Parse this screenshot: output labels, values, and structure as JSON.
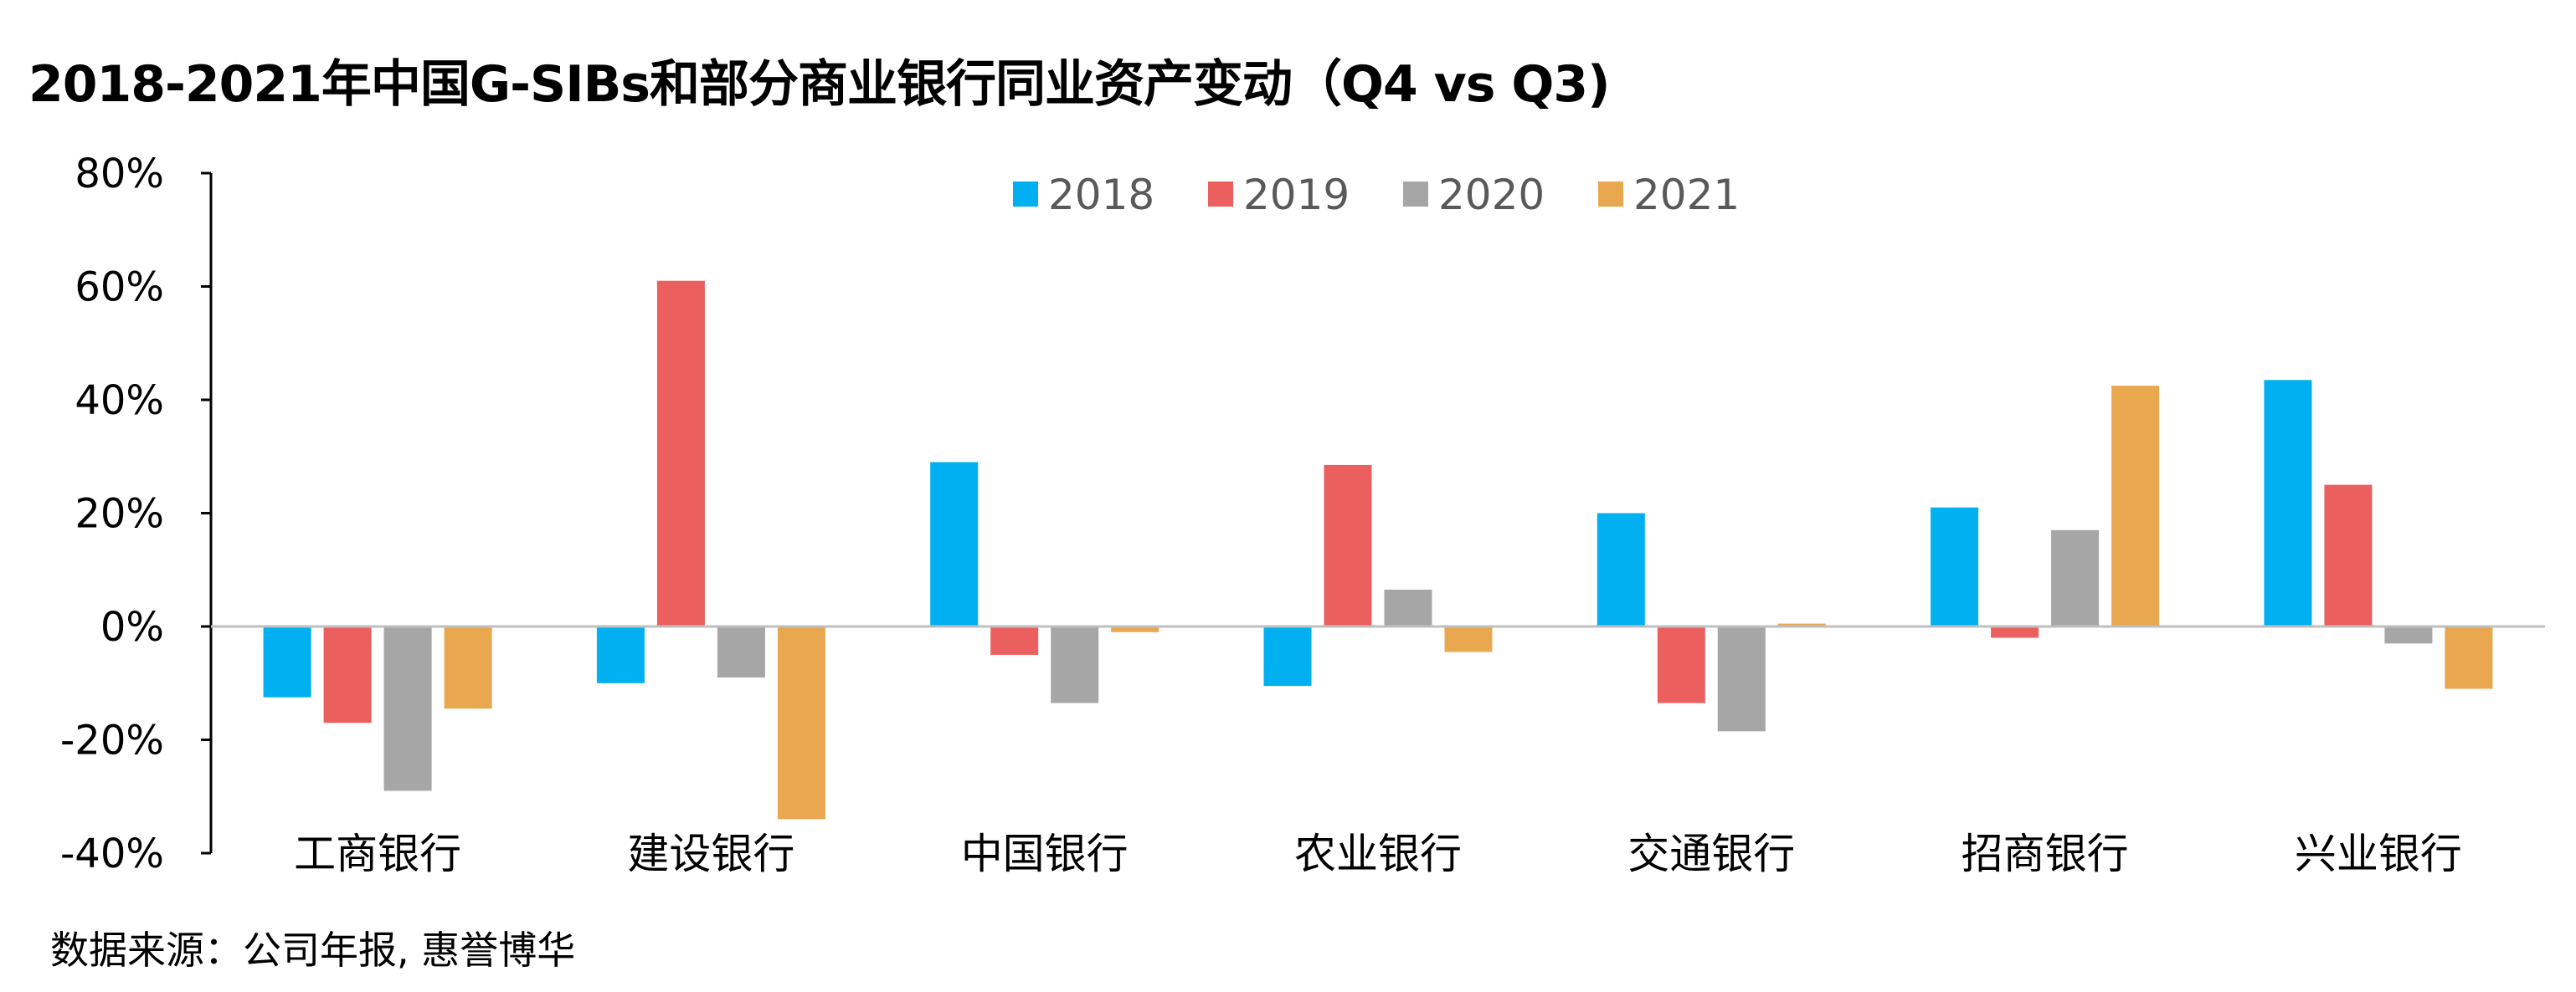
{
  "title": "2018-2021年中国G-SIBs和部分商业银行同业资产变动（Q4  vs Q3)",
  "source": "数据来源：公司年报, 惠誉博华",
  "chart_data": {
    "type": "bar",
    "title": "2018-2021年中国G-SIBs和部分商业银行同业资产变动（Q4  vs Q3)",
    "categories": [
      "工商银行",
      "建设银行",
      "中国银行",
      "农业银行",
      "交通银行",
      "招商银行",
      "兴业银行"
    ],
    "series": [
      {
        "name": "2018",
        "color": "#00b0f0",
        "values": [
          -12.5,
          -10,
          29,
          -10.5,
          20,
          21,
          43.5
        ]
      },
      {
        "name": "2019",
        "color": "#eb5f5f",
        "values": [
          -17,
          61,
          -5,
          28.5,
          -13.5,
          -2,
          25
        ]
      },
      {
        "name": "2020",
        "color": "#a6a6a6",
        "values": [
          -29,
          -9,
          -13.5,
          6.5,
          -18.5,
          17,
          -3
        ]
      },
      {
        "name": "2021",
        "color": "#e9a74f",
        "values": [
          -14.5,
          -34,
          -1,
          -4.5,
          0.5,
          42.5,
          -11
        ]
      }
    ],
    "ylim": [
      -40,
      80
    ],
    "ytick_step": 20,
    "ytick_format": "percent",
    "xlabel": "",
    "ylabel": "",
    "legend_position": "top-center",
    "grid": false
  }
}
